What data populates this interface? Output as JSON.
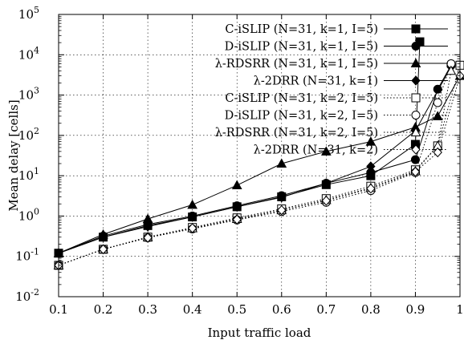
{
  "chart_data": {
    "type": "line",
    "title": "",
    "xlabel": "Input traffic load",
    "ylabel": "Mean delay [cells]",
    "xlim": [
      0.1,
      1.0
    ],
    "ylim": [
      0.01,
      100000
    ],
    "y_scale": "log",
    "grid": true,
    "legend_position": "top-left",
    "x_ticks": [
      "0.1",
      "0.2",
      "0.3",
      "0.4",
      "0.5",
      "0.6",
      "0.7",
      "0.8",
      "0.9",
      "1"
    ],
    "y_ticks": [
      {
        "value": 0.01,
        "base": "10",
        "exp": "-2"
      },
      {
        "value": 0.1,
        "base": "10",
        "exp": "-1"
      },
      {
        "value": 1,
        "base": "10",
        "exp": "0"
      },
      {
        "value": 10,
        "base": "10",
        "exp": "1"
      },
      {
        "value": 100,
        "base": "10",
        "exp": "2"
      },
      {
        "value": 1000,
        "base": "10",
        "exp": "3"
      },
      {
        "value": 10000,
        "base": "10",
        "exp": "4"
      },
      {
        "value": 100000,
        "base": "10",
        "exp": "5"
      }
    ],
    "series": [
      {
        "name": "C-iSLIP (N=31, k=1, I=5)",
        "marker": "square",
        "filled": true,
        "dash": "solid",
        "x": [
          0.1,
          0.2,
          0.3,
          0.4,
          0.5,
          0.6,
          0.7,
          0.8,
          0.9,
          0.91
        ],
        "y": [
          0.12,
          0.3,
          0.58,
          0.95,
          1.7,
          3.0,
          6.0,
          10.0,
          60,
          21000
        ]
      },
      {
        "name": "D-iSLIP (N=31, k=1, I=5)",
        "marker": "circle",
        "filled": true,
        "dash": "solid",
        "x": [
          0.1,
          0.2,
          0.3,
          0.4,
          0.5,
          0.6,
          0.7,
          0.8,
          0.9,
          0.95,
          0.98
        ],
        "y": [
          0.12,
          0.32,
          0.62,
          1.0,
          1.8,
          3.2,
          6.5,
          12.0,
          25,
          1400,
          5500
        ]
      },
      {
        "name": "λ-RDSRR (N=31, k=1, I=5)",
        "marker": "triangle",
        "filled": true,
        "dash": "solid",
        "x": [
          0.1,
          0.2,
          0.3,
          0.4,
          0.5,
          0.6,
          0.7,
          0.8,
          0.9,
          0.95,
          1.0
        ],
        "y": [
          0.12,
          0.35,
          0.85,
          1.9,
          5.8,
          20,
          40,
          70,
          160,
          300,
          3000
        ]
      },
      {
        "name": "λ-2DRR (N=31, k=1)",
        "marker": "diamond",
        "filled": true,
        "dash": "solid",
        "x": [
          0.1,
          0.2,
          0.3,
          0.4,
          0.5,
          0.6,
          0.7,
          0.8,
          0.9,
          0.98
        ],
        "y": [
          0.12,
          0.3,
          0.55,
          0.95,
          1.7,
          2.9,
          6.5,
          17,
          130,
          5000
        ]
      },
      {
        "name": "C-iSLIP (N=31, k=2, I=5)",
        "marker": "square",
        "filled": false,
        "dash": "dotted",
        "x": [
          0.1,
          0.2,
          0.3,
          0.4,
          0.5,
          0.6,
          0.7,
          0.8,
          0.9,
          0.95,
          1.0
        ],
        "y": [
          0.06,
          0.15,
          0.3,
          0.52,
          0.9,
          1.5,
          2.7,
          5.5,
          14,
          55,
          5500
        ]
      },
      {
        "name": "D-iSLIP (N=31, k=2, I=5)",
        "marker": "circle",
        "filled": false,
        "dash": "dotted",
        "x": [
          0.1,
          0.2,
          0.3,
          0.4,
          0.5,
          0.6,
          0.7,
          0.8,
          0.9,
          0.95,
          0.98
        ],
        "y": [
          0.06,
          0.15,
          0.29,
          0.48,
          0.8,
          1.3,
          2.2,
          4.3,
          12,
          650,
          6000
        ]
      },
      {
        "name": "λ-RDSRR (N=31, k=2, I=5)",
        "marker": "triangle",
        "filled": false,
        "dash": "dotted",
        "x": [
          0.1,
          0.2,
          0.3,
          0.4,
          0.5,
          0.6,
          0.7,
          0.8,
          0.9,
          0.95,
          0.98
        ],
        "y": [
          0.06,
          0.15,
          0.3,
          0.5,
          0.85,
          1.4,
          2.5,
          5.0,
          13,
          55,
          4000
        ]
      },
      {
        "name": "λ-2DRR (N=31, k=2)",
        "marker": "diamond",
        "filled": false,
        "dash": "dotted",
        "x": [
          0.1,
          0.2,
          0.3,
          0.4,
          0.5,
          0.6,
          0.7,
          0.8,
          0.9,
          0.95,
          1.0
        ],
        "y": [
          0.06,
          0.15,
          0.29,
          0.5,
          0.82,
          1.4,
          2.4,
          4.8,
          12.5,
          38,
          3000
        ]
      }
    ]
  }
}
